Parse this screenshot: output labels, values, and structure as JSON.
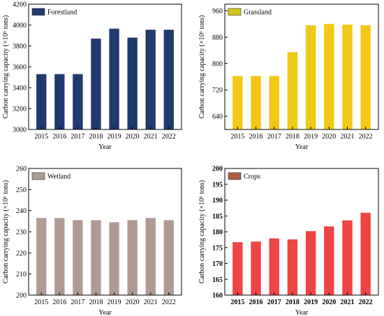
{
  "chart_data": [
    {
      "type": "bar",
      "legend": "Forestland",
      "bar_color": "#1f3a6e",
      "legend_color": "#1f3a6e",
      "xlabel": "Year",
      "ylabel": "Carbon carrying capacity (×10⁶ tons)",
      "categories": [
        "2015",
        "2016",
        "2017",
        "2018",
        "2019",
        "2020",
        "2021",
        "2022"
      ],
      "values": [
        3530,
        3530,
        3530,
        3870,
        3965,
        3880,
        3955,
        3955
      ],
      "ylim": [
        3000,
        4200
      ],
      "yticks": [
        "3000",
        "3200",
        "3400",
        "3600",
        "3800",
        "4000",
        "4200"
      ],
      "bold_ticks": false,
      "legend_position": "top-left"
    },
    {
      "type": "bar",
      "legend": "Grassland",
      "bar_color": "#f2c816",
      "legend_color": "#d4c21a",
      "xlabel": "Year",
      "ylabel": "Carbon carrying capacity (×10⁶ tons)",
      "categories": [
        "2015",
        "2016",
        "2017",
        "2018",
        "2019",
        "2020",
        "2021",
        "2022"
      ],
      "values": [
        762,
        762,
        762,
        834,
        916,
        920,
        918,
        916
      ],
      "ylim": [
        600,
        980
      ],
      "yticks": [
        "640",
        "720",
        "800",
        "880",
        "960"
      ],
      "bold_ticks": false,
      "legend_position": "top-left"
    },
    {
      "type": "bar",
      "legend": "Wetland",
      "bar_color": "#b09a94",
      "legend_color": "#b09a94",
      "xlabel": "Year",
      "ylabel": "Carbon carrying capacity (×10⁶ tons)",
      "categories": [
        "2015",
        "2016",
        "2017",
        "2018",
        "2019",
        "2020",
        "2021",
        "2022"
      ],
      "values": [
        236.5,
        236.5,
        235.5,
        235.5,
        234.5,
        235.5,
        236.5,
        235.5
      ],
      "ylim": [
        200,
        260
      ],
      "yticks": [
        "200",
        "210",
        "220",
        "230",
        "240",
        "250",
        "260"
      ],
      "bold_ticks": false,
      "legend_position": "top-left"
    },
    {
      "type": "bar",
      "legend": "Crops",
      "bar_color": "#ee4444",
      "legend_color": "#b35a3c",
      "xlabel": "Year",
      "ylabel": "Carbon carrying capacity (×10⁶ tons)",
      "categories": [
        "2015",
        "2016",
        "2017",
        "2018",
        "2019",
        "2020",
        "2021",
        "2022"
      ],
      "values": [
        176.7,
        176.9,
        177.9,
        177.6,
        180.2,
        181.7,
        183.6,
        186.0
      ],
      "ylim": [
        160,
        200
      ],
      "yticks": [
        "160",
        "165",
        "170",
        "175",
        "180",
        "185",
        "190",
        "195",
        "200"
      ],
      "bold_ticks": true,
      "legend_position": "top-left"
    }
  ]
}
